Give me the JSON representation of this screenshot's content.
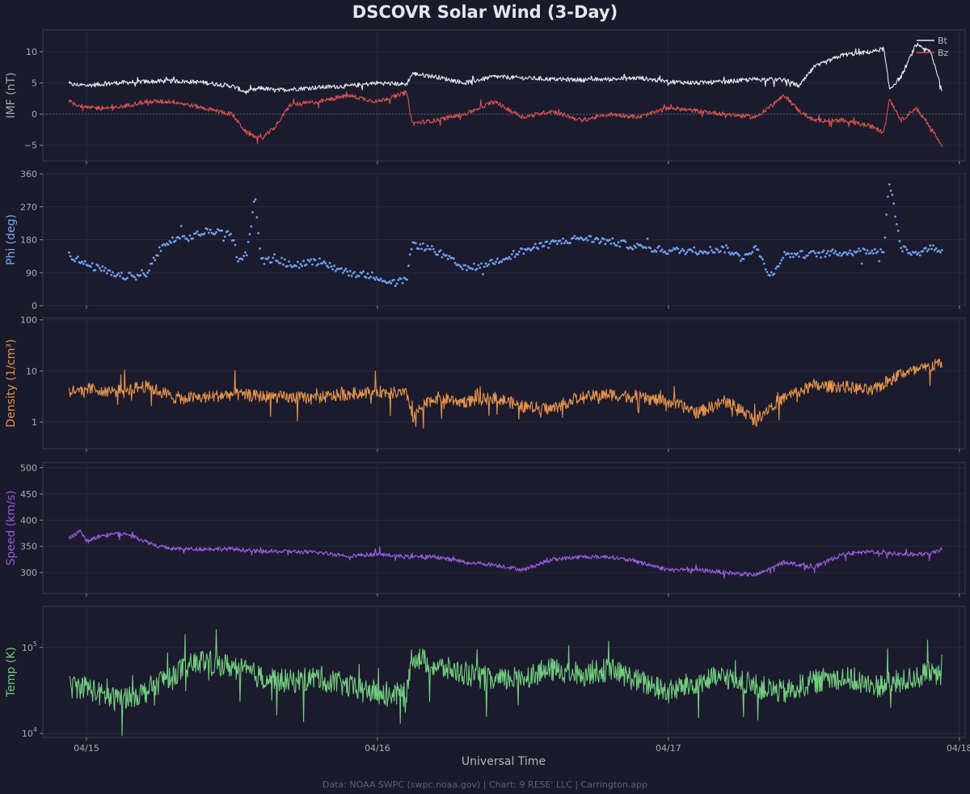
{
  "chart_data": {
    "type": "line",
    "title": "DSCOVR Solar Wind (3-Day)",
    "xlabel": "Universal Time",
    "x_ticks": [
      "04/15",
      "04/16",
      "04/17",
      "04/18"
    ],
    "x_range_days": [
      -0.15,
      3.02
    ],
    "footer": "Data: NOAA SWPC (swpc.noaa.gov) | Chart: 9 RESE' LLC | Carrington.app",
    "panels": [
      {
        "id": "imf",
        "ylabel": "IMF (nT)",
        "ylabel_color": "#a5a5b2",
        "scale": "linear",
        "ylim": [
          -7.5,
          13.5
        ],
        "ticks": [
          {
            "v": -5,
            "label": "−5"
          },
          {
            "v": 0,
            "label": "0"
          },
          {
            "v": 5,
            "label": "5"
          },
          {
            "v": 10,
            "label": "10"
          }
        ],
        "zero_line": true,
        "legend": [
          {
            "name": "Bt",
            "color": "#e6e6ee"
          },
          {
            "name": "Bz",
            "color": "#d9534f"
          }
        ],
        "series": [
          {
            "name": "Bt",
            "color": "#e6e6ee",
            "style": "line",
            "x": [
              -0.06,
              0.0,
              0.1,
              0.2,
              0.3,
              0.4,
              0.5,
              0.55,
              0.6,
              0.65,
              0.7,
              0.8,
              0.9,
              1.0,
              1.1,
              1.12,
              1.2,
              1.3,
              1.4,
              1.5,
              1.6,
              1.7,
              1.8,
              1.9,
              2.0,
              2.1,
              2.2,
              2.3,
              2.4,
              2.45,
              2.5,
              2.6,
              2.7,
              2.74,
              2.76,
              2.8,
              2.85,
              2.9,
              2.94
            ],
            "values": [
              4.8,
              4.6,
              5.0,
              5.2,
              5.3,
              5.1,
              4.5,
              3.5,
              4.2,
              3.8,
              4.0,
              4.3,
              4.5,
              5.0,
              4.8,
              6.5,
              6.0,
              5.0,
              6.0,
              5.8,
              5.6,
              5.5,
              5.6,
              5.8,
              5.2,
              5.0,
              5.2,
              5.6,
              5.5,
              4.5,
              7.5,
              9.5,
              10.0,
              10.5,
              4.0,
              6.0,
              11.0,
              10.0,
              4.0
            ]
          },
          {
            "name": "Bz",
            "color": "#d9534f",
            "style": "line",
            "x": [
              -0.06,
              0.0,
              0.1,
              0.2,
              0.3,
              0.4,
              0.5,
              0.55,
              0.6,
              0.65,
              0.7,
              0.8,
              0.9,
              1.0,
              1.1,
              1.12,
              1.2,
              1.3,
              1.4,
              1.5,
              1.6,
              1.7,
              1.8,
              1.9,
              2.0,
              2.1,
              2.2,
              2.3,
              2.4,
              2.45,
              2.5,
              2.6,
              2.7,
              2.74,
              2.76,
              2.8,
              2.85,
              2.9,
              2.94
            ],
            "values": [
              2.0,
              1.0,
              1.0,
              2.0,
              2.0,
              1.0,
              0.0,
              -3.0,
              -4.0,
              -2.0,
              1.5,
              2.0,
              3.0,
              2.0,
              3.5,
              -1.5,
              -1.0,
              0.0,
              2.0,
              -0.5,
              0.5,
              -1.0,
              0.0,
              -0.5,
              1.0,
              0.5,
              0.0,
              -0.5,
              3.0,
              0.5,
              -1.0,
              -1.0,
              -2.0,
              -3.0,
              2.5,
              -1.0,
              1.0,
              -2.0,
              -5.0
            ]
          }
        ]
      },
      {
        "id": "phi",
        "ylabel": "Phi (deg)",
        "ylabel_color": "#7aa7ef",
        "scale": "linear",
        "ylim": [
          0,
          360
        ],
        "ticks": [
          {
            "v": 0,
            "label": "0"
          },
          {
            "v": 90,
            "label": "90"
          },
          {
            "v": 180,
            "label": "180"
          },
          {
            "v": 270,
            "label": "270"
          },
          {
            "v": 360,
            "label": "360"
          }
        ],
        "series": [
          {
            "name": "Phi",
            "color": "#6f9ff0",
            "style": "dots",
            "x": [
              -0.06,
              0.0,
              0.05,
              0.1,
              0.2,
              0.25,
              0.3,
              0.35,
              0.4,
              0.45,
              0.5,
              0.52,
              0.55,
              0.58,
              0.6,
              0.65,
              0.7,
              0.8,
              0.9,
              1.0,
              1.05,
              1.1,
              1.12,
              1.2,
              1.3,
              1.35,
              1.4,
              1.5,
              1.6,
              1.7,
              1.8,
              1.9,
              2.0,
              2.1,
              2.2,
              2.25,
              2.3,
              2.35,
              2.4,
              2.5,
              2.6,
              2.7,
              2.74,
              2.76,
              2.8,
              2.85,
              2.9,
              2.94
            ],
            "values": [
              140,
              110,
              100,
              80,
              80,
              150,
              180,
              185,
              200,
              205,
              190,
              130,
              140,
              300,
              120,
              130,
              110,
              120,
              90,
              80,
              60,
              70,
              170,
              150,
              100,
              110,
              120,
              150,
              170,
              185,
              175,
              160,
              150,
              150,
              155,
              130,
              160,
              80,
              140,
              140,
              145,
              150,
              150,
              340,
              160,
              140,
              160,
              150
            ]
          }
        ]
      },
      {
        "id": "density",
        "ylabel": "Density (1/cm³)",
        "ylabel_color": "#e5934a",
        "scale": "log",
        "ylim": [
          0.3,
          110
        ],
        "ticks": [
          {
            "v": 1,
            "label": "1"
          },
          {
            "v": 10,
            "label": "10"
          },
          {
            "v": 100,
            "label": "100"
          }
        ],
        "series": [
          {
            "name": "Density",
            "color": "#e5934a",
            "style": "line",
            "x": [
              -0.06,
              0.0,
              0.1,
              0.2,
              0.3,
              0.4,
              0.5,
              0.6,
              0.7,
              0.8,
              0.9,
              1.0,
              1.1,
              1.12,
              1.2,
              1.3,
              1.4,
              1.5,
              1.6,
              1.7,
              1.8,
              1.9,
              2.0,
              2.1,
              2.2,
              2.3,
              2.4,
              2.5,
              2.6,
              2.7,
              2.74,
              2.8,
              2.85,
              2.9,
              2.94
            ],
            "values": [
              4.0,
              4.5,
              4.0,
              5.0,
              3.0,
              3.0,
              3.5,
              3.2,
              3.0,
              3.0,
              3.5,
              4.0,
              3.5,
              1.2,
              3.0,
              2.5,
              3.0,
              2.0,
              1.8,
              3.0,
              3.5,
              3.0,
              2.5,
              1.5,
              2.5,
              1.0,
              3.0,
              5.0,
              5.0,
              4.0,
              5.5,
              9.0,
              10.0,
              12.0,
              15.0
            ]
          }
        ]
      },
      {
        "id": "speed",
        "ylabel": "Speed (km/s)",
        "ylabel_color": "#9b5ce0",
        "scale": "linear",
        "ylim": [
          260,
          510
        ],
        "ticks": [
          {
            "v": 300,
            "label": "300"
          },
          {
            "v": 350,
            "label": "350"
          },
          {
            "v": 400,
            "label": "400"
          },
          {
            "v": 450,
            "label": "450"
          },
          {
            "v": 500,
            "label": "500"
          }
        ],
        "series": [
          {
            "name": "Speed",
            "color": "#9b5ce0",
            "style": "line",
            "x": [
              -0.06,
              -0.02,
              0.0,
              0.05,
              0.1,
              0.15,
              0.2,
              0.25,
              0.3,
              0.4,
              0.5,
              0.6,
              0.7,
              0.8,
              0.9,
              1.0,
              1.1,
              1.2,
              1.3,
              1.4,
              1.5,
              1.6,
              1.7,
              1.8,
              1.9,
              2.0,
              2.1,
              2.2,
              2.3,
              2.4,
              2.5,
              2.6,
              2.7,
              2.8,
              2.9,
              2.94
            ],
            "values": [
              365,
              380,
              360,
              370,
              375,
              372,
              360,
              350,
              345,
              345,
              345,
              340,
              340,
              338,
              332,
              335,
              330,
              330,
              320,
              315,
              305,
              325,
              330,
              330,
              320,
              305,
              305,
              300,
              295,
              320,
              310,
              335,
              340,
              335,
              335,
              345
            ]
          }
        ]
      },
      {
        "id": "temp",
        "ylabel": "Temp (K)",
        "ylabel_color": "#72cc7e",
        "scale": "log",
        "ylim": [
          9000,
          300000
        ],
        "ticks": [
          {
            "v": 10000,
            "label": "10",
            "exp": "4"
          },
          {
            "v": 100000,
            "label": "10",
            "exp": "5"
          }
        ],
        "series": [
          {
            "name": "Temp",
            "color": "#72cc7e",
            "style": "line",
            "x": [
              -0.06,
              0.0,
              0.05,
              0.1,
              0.2,
              0.3,
              0.4,
              0.5,
              0.6,
              0.7,
              0.8,
              0.9,
              1.0,
              1.1,
              1.12,
              1.2,
              1.3,
              1.4,
              1.5,
              1.6,
              1.7,
              1.8,
              1.9,
              2.0,
              2.1,
              2.2,
              2.3,
              2.4,
              2.5,
              2.6,
              2.7,
              2.8,
              2.9,
              2.94
            ],
            "values": [
              35000,
              35000,
              28000,
              25000,
              30000,
              50000,
              70000,
              60000,
              45000,
              40000,
              45000,
              35000,
              30000,
              28000,
              80000,
              60000,
              50000,
              40000,
              45000,
              55000,
              50000,
              55000,
              40000,
              30000,
              40000,
              45000,
              35000,
              30000,
              40000,
              45000,
              35000,
              40000,
              50000,
              45000
            ]
          }
        ]
      }
    ]
  }
}
